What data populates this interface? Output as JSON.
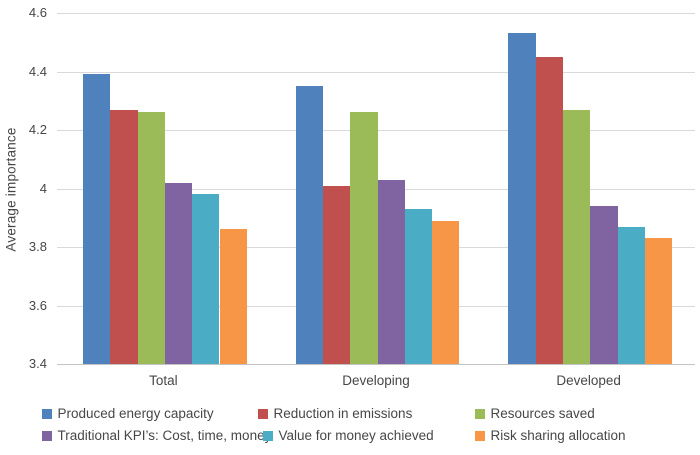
{
  "chart_data": {
    "type": "bar",
    "title": "",
    "xlabel": "",
    "ylabel": "Average importance",
    "categories": [
      "Total",
      "Developing",
      "Developed"
    ],
    "series": [
      {
        "name": "Produced energy capacity",
        "color": "#4F81BD",
        "values": [
          4.39,
          4.35,
          4.53
        ]
      },
      {
        "name": "Reduction in emissions",
        "color": "#C0504D",
        "values": [
          4.27,
          4.01,
          4.45
        ]
      },
      {
        "name": "Resources saved",
        "color": "#9BBB59",
        "values": [
          4.26,
          4.26,
          4.27
        ]
      },
      {
        "name": "Traditional KPI’s: Cost, time, money",
        "color": "#8064A2",
        "values": [
          4.02,
          4.03,
          3.94
        ]
      },
      {
        "name": "Value for money achieved",
        "color": "#4BACC6",
        "values": [
          3.98,
          3.93,
          3.87
        ]
      },
      {
        "name": "Risk sharing allocation",
        "color": "#F79646",
        "values": [
          3.86,
          3.89,
          3.83
        ]
      }
    ],
    "ylim": [
      3.4,
      4.6
    ],
    "yticks": [
      3.4,
      3.6,
      3.8,
      4.0,
      4.2,
      4.4,
      4.6
    ],
    "ytick_labels": [
      "3.4",
      "3.6",
      "3.8",
      "4",
      "4.2",
      "4.4",
      "4.6"
    ],
    "grid": true,
    "legend_position": "bottom",
    "colors": {
      "gridline": "#D9D9D9",
      "axis_line": "#C3C3C3",
      "text": "#474747",
      "background": "#FFFFFF"
    }
  }
}
